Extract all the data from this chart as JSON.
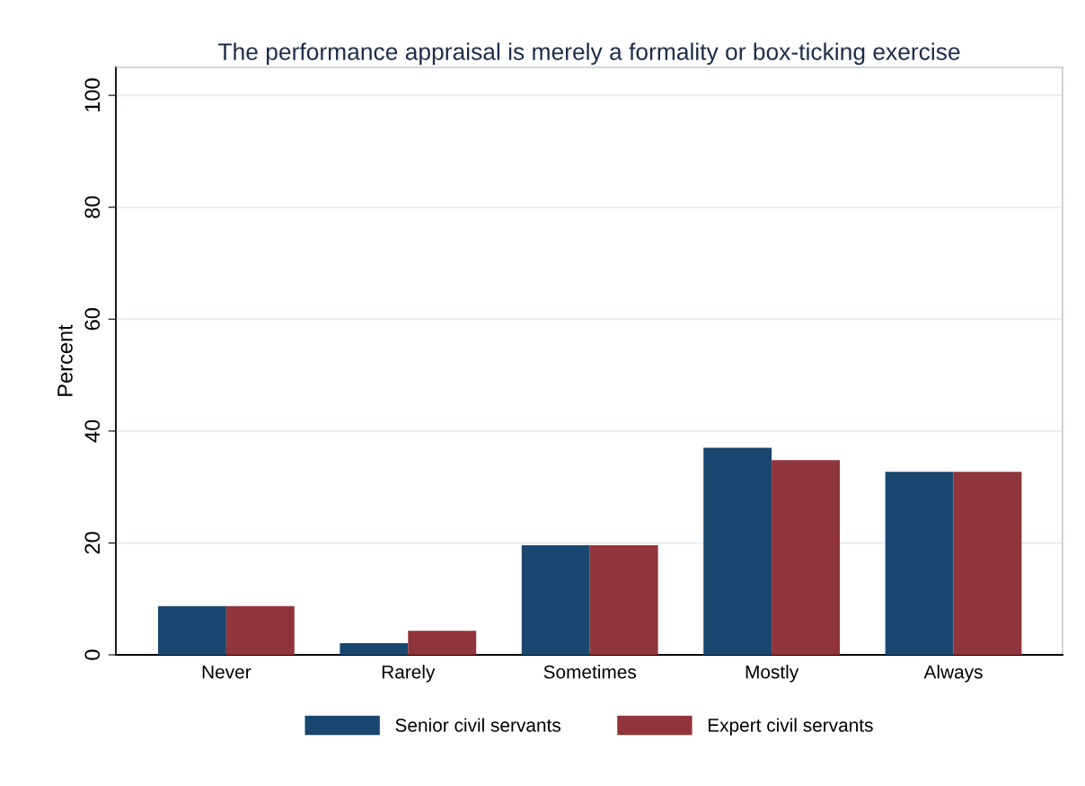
{
  "chart_data": {
    "type": "bar",
    "title": "The performance appraisal is merely a formality or box-ticking exercise",
    "ylabel": "Percent",
    "categories": [
      "Never",
      "Rarely",
      "Sometimes",
      "Mostly",
      "Always"
    ],
    "series": [
      {
        "name": "Senior civil servants",
        "color": "#1a476f",
        "values": [
          8.7,
          2.1,
          19.6,
          37.0,
          32.7
        ]
      },
      {
        "name": "Expert civil servants",
        "color": "#90353b",
        "values": [
          8.7,
          4.3,
          19.6,
          34.8,
          32.7
        ]
      }
    ],
    "ylim": [
      0,
      105
    ],
    "yticks": [
      0,
      20,
      40,
      60,
      80,
      100
    ],
    "grid": "y",
    "legend": "bottom"
  }
}
